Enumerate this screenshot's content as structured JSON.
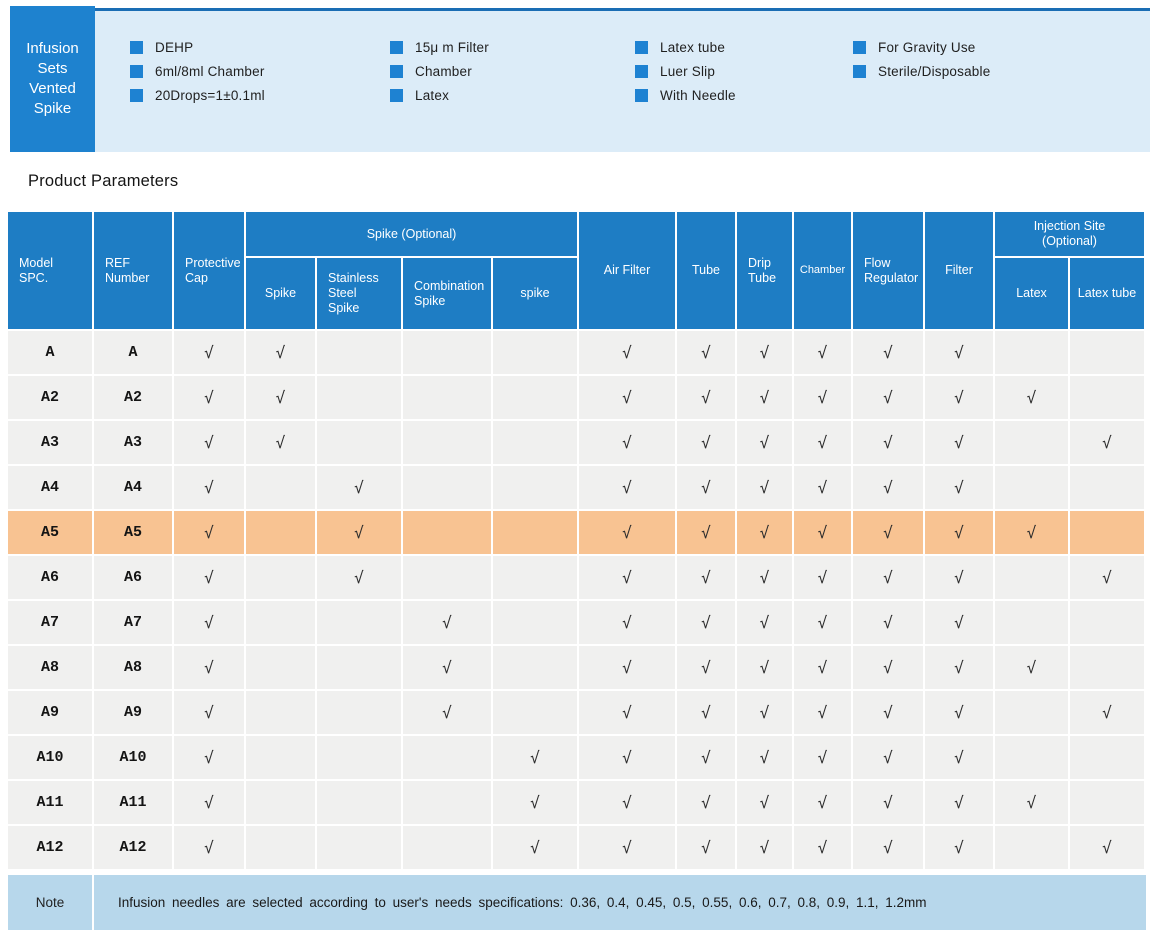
{
  "product_header": {
    "title": "Infusion\nSets\nVented\nSpike",
    "feature_columns": [
      [
        "DEHP",
        "6ml/8ml Chamber",
        "20Drops=1±0.1ml"
      ],
      [
        "15μ m Filter",
        "Chamber",
        "Latex"
      ],
      [
        "Latex tube",
        "Luer Slip",
        "With Needle"
      ],
      [
        "For Gravity Use",
        "Sterile/Disposable"
      ]
    ]
  },
  "section_title": "Product Parameters",
  "table": {
    "check_symbol": "√",
    "headers": {
      "model": "Model\nSPC.",
      "ref": "REF\nNumber",
      "protective_cap": "Protective\nCap",
      "spike_group": "Spike (Optional)",
      "spike": "Spike",
      "stainless_steel_spike": "Stainless\nSteel\nSpike",
      "combination_spike": "Combination\nSpike",
      "spike2": "spike",
      "air_filter": "Air Filter",
      "tube": "Tube",
      "drip_tube": "Drip\nTube",
      "chamber": "Chamber",
      "flow_regulator": "Flow\nRegulator",
      "filter": "Filter",
      "injection_group": "Injection Site\n(Optional)",
      "latex": "Latex",
      "latex_tube": "Latex tube"
    },
    "check_columns": [
      "protective_cap",
      "spike",
      "stainless_steel_spike",
      "combination_spike",
      "spike2",
      "air_filter",
      "tube",
      "drip_tube",
      "chamber",
      "flow_regulator",
      "filter",
      "latex",
      "latex_tube"
    ],
    "rows": [
      {
        "model": "A",
        "ref": "A",
        "highlight": false,
        "checks": [
          1,
          1,
          0,
          0,
          0,
          1,
          1,
          1,
          1,
          1,
          1,
          0,
          0
        ]
      },
      {
        "model": "A2",
        "ref": "A2",
        "highlight": false,
        "checks": [
          1,
          1,
          0,
          0,
          0,
          1,
          1,
          1,
          1,
          1,
          1,
          1,
          0
        ]
      },
      {
        "model": "A3",
        "ref": "A3",
        "highlight": false,
        "checks": [
          1,
          1,
          0,
          0,
          0,
          1,
          1,
          1,
          1,
          1,
          1,
          0,
          1
        ]
      },
      {
        "model": "A4",
        "ref": "A4",
        "highlight": false,
        "checks": [
          1,
          0,
          1,
          0,
          0,
          1,
          1,
          1,
          1,
          1,
          1,
          0,
          0
        ]
      },
      {
        "model": "A5",
        "ref": "A5",
        "highlight": true,
        "checks": [
          1,
          0,
          1,
          0,
          0,
          1,
          1,
          1,
          1,
          1,
          1,
          1,
          0
        ]
      },
      {
        "model": "A6",
        "ref": "A6",
        "highlight": false,
        "checks": [
          1,
          0,
          1,
          0,
          0,
          1,
          1,
          1,
          1,
          1,
          1,
          0,
          1
        ]
      },
      {
        "model": "A7",
        "ref": "A7",
        "highlight": false,
        "checks": [
          1,
          0,
          0,
          1,
          0,
          1,
          1,
          1,
          1,
          1,
          1,
          0,
          0
        ]
      },
      {
        "model": "A8",
        "ref": "A8",
        "highlight": false,
        "checks": [
          1,
          0,
          0,
          1,
          0,
          1,
          1,
          1,
          1,
          1,
          1,
          1,
          0
        ]
      },
      {
        "model": "A9",
        "ref": "A9",
        "highlight": false,
        "checks": [
          1,
          0,
          0,
          1,
          0,
          1,
          1,
          1,
          1,
          1,
          1,
          0,
          1
        ]
      },
      {
        "model": "A10",
        "ref": "A10",
        "highlight": false,
        "checks": [
          1,
          0,
          0,
          0,
          1,
          1,
          1,
          1,
          1,
          1,
          1,
          0,
          0
        ]
      },
      {
        "model": "A11",
        "ref": "A11",
        "highlight": false,
        "checks": [
          1,
          0,
          0,
          0,
          1,
          1,
          1,
          1,
          1,
          1,
          1,
          1,
          0
        ]
      },
      {
        "model": "A12",
        "ref": "A12",
        "highlight": false,
        "checks": [
          1,
          0,
          0,
          0,
          1,
          1,
          1,
          1,
          1,
          1,
          1,
          0,
          1
        ]
      }
    ]
  },
  "note": {
    "label": "Note",
    "text": "Infusion needles are selected according to user's needs specifications: 0.36, 0.4, 0.45, 0.5, 0.55, 0.6, 0.7, 0.8, 0.9, 1.1, 1.2mm"
  },
  "colors": {
    "table_header_blue": "#1e7dc4",
    "title_box_blue": "#1e82cf",
    "feature_panel_blue": "#dcecf8",
    "panel_top_border_blue": "#1a6db4",
    "bullet_square_blue": "#1e82d2",
    "row_gray": "#f0f0ef",
    "highlight_orange": "#f8c392",
    "note_bar_blue": "#b7d7eb"
  }
}
